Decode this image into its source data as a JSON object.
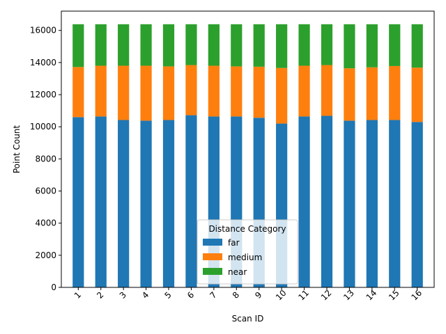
{
  "chart_data": {
    "type": "bar",
    "stacked": true,
    "categories": [
      "1",
      "2",
      "3",
      "4",
      "5",
      "6",
      "7",
      "8",
      "9",
      "10",
      "11",
      "12",
      "13",
      "14",
      "15",
      "16"
    ],
    "series": [
      {
        "name": "far",
        "color": "#1f77b4",
        "values": [
          10600,
          10640,
          10420,
          10380,
          10420,
          10720,
          10640,
          10640,
          10560,
          10200,
          10640,
          10680,
          10380,
          10420,
          10420,
          10300
        ]
      },
      {
        "name": "medium",
        "color": "#ff7f0e",
        "values": [
          3120,
          3160,
          3380,
          3420,
          3340,
          3120,
          3160,
          3120,
          3180,
          3460,
          3160,
          3160,
          3260,
          3280,
          3360,
          3380
        ]
      },
      {
        "name": "near",
        "color": "#2ca02c",
        "values": [
          2664,
          2584,
          2584,
          2584,
          2624,
          2544,
          2584,
          2624,
          2644,
          2724,
          2584,
          2544,
          2744,
          2684,
          2604,
          2704
        ]
      }
    ],
    "xlabel": "Scan ID",
    "ylabel": "Point Count",
    "ylim": [
      0,
      17200
    ],
    "yticks": [
      0,
      2000,
      4000,
      6000,
      8000,
      10000,
      12000,
      14000,
      16000
    ],
    "grid": false,
    "legend": {
      "title": "Distance Category",
      "placement": "lower-center"
    }
  }
}
